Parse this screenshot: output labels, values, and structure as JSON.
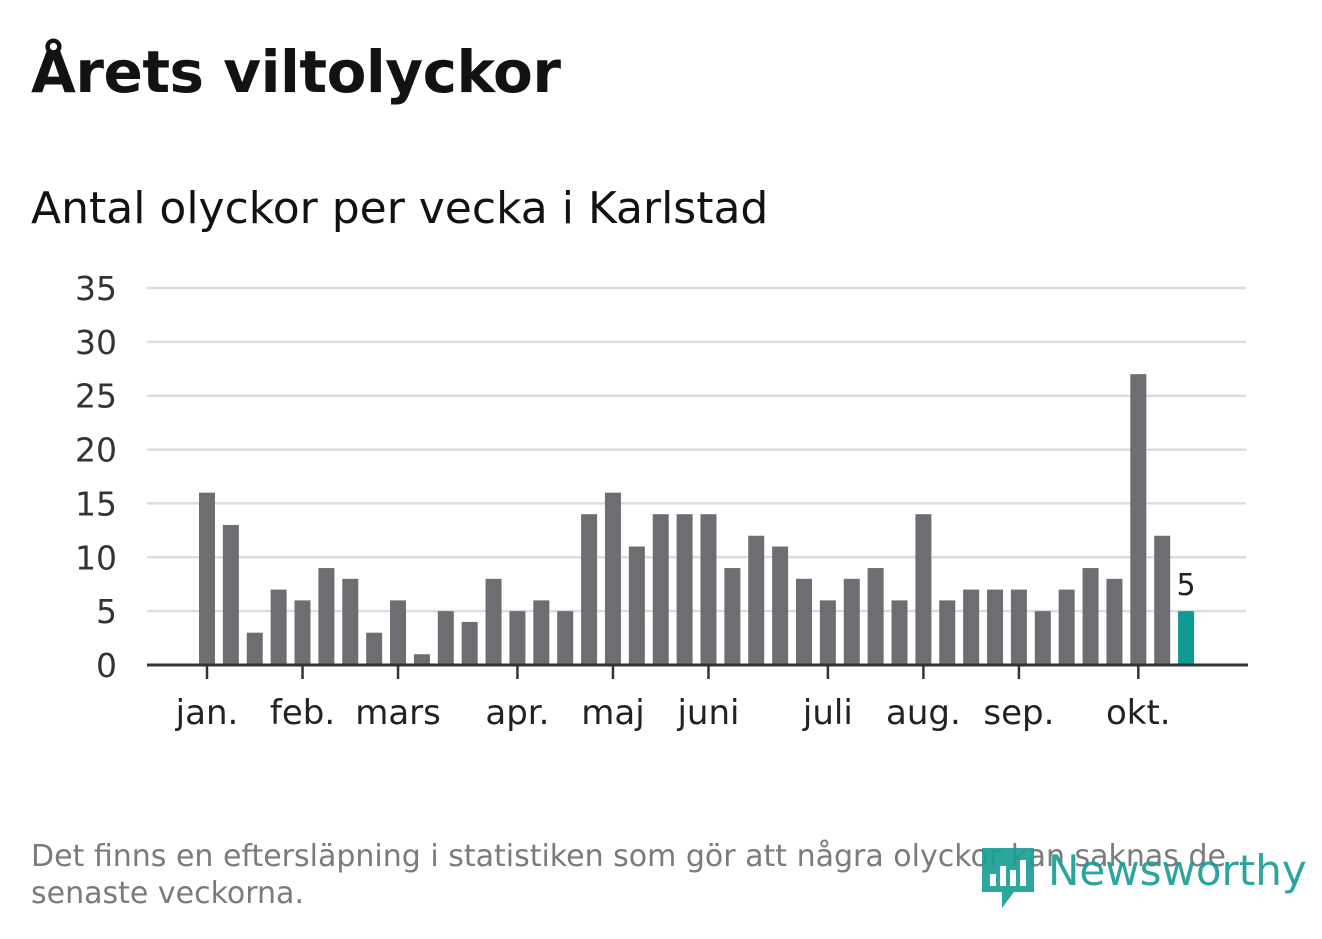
{
  "header": {
    "title": "Årets viltolyckor",
    "subtitle": "Antal olyckor per vecka i Karlstad"
  },
  "footnote": {
    "text": "Det finns en eftersläpning i statistiken som gör att några olyckor kan saknas de senaste veckorna."
  },
  "brand": {
    "name": "Newsworthy",
    "color": "#1b9e96",
    "icon": "newsworthy-logo-icon"
  },
  "colors": {
    "bar": "#6e6d72",
    "highlight": "#0f9b94",
    "grid": "#dddddd",
    "axis": "#333333"
  },
  "chart_data": {
    "type": "bar",
    "title": "Antal olyckor per vecka i Karlstad",
    "xlabel": "",
    "ylabel": "",
    "ylim": [
      0,
      35
    ],
    "yticks": [
      0,
      5,
      10,
      15,
      20,
      25,
      30,
      35
    ],
    "grid": true,
    "month_labels": [
      {
        "label": "jan.",
        "week_index": 0
      },
      {
        "label": "feb.",
        "week_index": 4
      },
      {
        "label": "mars",
        "week_index": 8
      },
      {
        "label": "apr.",
        "week_index": 13
      },
      {
        "label": "maj",
        "week_index": 17
      },
      {
        "label": "juni",
        "week_index": 21
      },
      {
        "label": "juli",
        "week_index": 26
      },
      {
        "label": "aug.",
        "week_index": 30
      },
      {
        "label": "sep.",
        "week_index": 34
      },
      {
        "label": "okt.",
        "week_index": 39
      }
    ],
    "values": [
      16,
      13,
      3,
      7,
      6,
      9,
      8,
      3,
      6,
      1,
      5,
      4,
      8,
      5,
      6,
      5,
      14,
      16,
      11,
      14,
      14,
      14,
      9,
      12,
      11,
      8,
      6,
      8,
      9,
      6,
      14,
      6,
      7,
      7,
      7,
      5,
      7,
      9,
      8,
      27,
      12,
      5
    ],
    "highlight_index": 41,
    "highlight_label": "5"
  }
}
